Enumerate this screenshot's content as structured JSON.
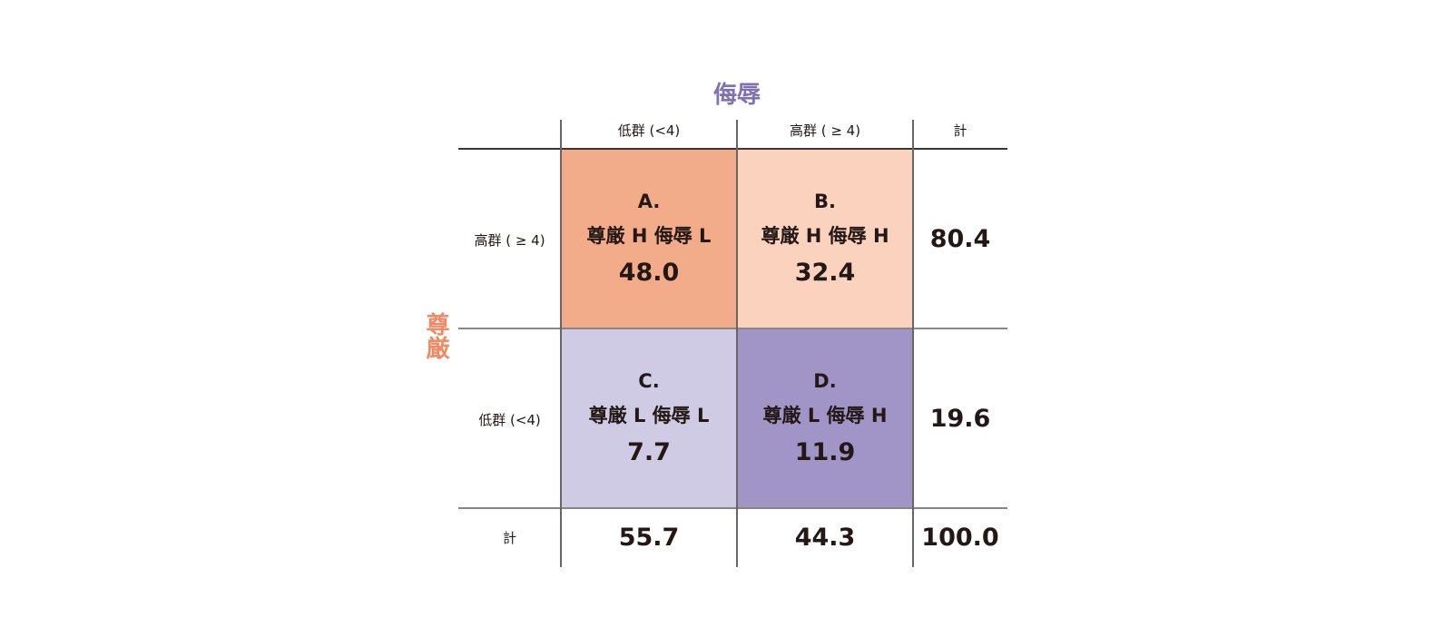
{
  "chart_data": {
    "type": "table",
    "col_axis_title": "侮辱",
    "row_axis_title": "尊厳",
    "columns": [
      "低群 (<4)",
      "高群 ( ≥ 4)",
      "計"
    ],
    "rows": [
      {
        "label": "高群 ( ≥ 4)",
        "cells": [
          {
            "letter": "A.",
            "desc": "尊厳 H 侮辱 L",
            "value": "48.0",
            "color": "#f3ac8a"
          },
          {
            "letter": "B.",
            "desc": "尊厳 H 侮辱 H",
            "value": "32.4",
            "color": "#fad2be"
          }
        ],
        "total": "80.4"
      },
      {
        "label": "低群 (<4)",
        "cells": [
          {
            "letter": "C.",
            "desc": "尊厳 L 侮辱 L",
            "value": "7.7",
            "color": "#d0cbe4"
          },
          {
            "letter": "D.",
            "desc": "尊厳 L 侮辱 H",
            "value": "11.9",
            "color": "#a095c6"
          }
        ],
        "total": "19.6"
      }
    ],
    "total_row": {
      "label": "計",
      "values": [
        "55.7",
        "44.3",
        "100.0"
      ]
    },
    "colors": {
      "col_axis_title": "#7f72b4",
      "row_axis_title": "#f08a62"
    }
  }
}
